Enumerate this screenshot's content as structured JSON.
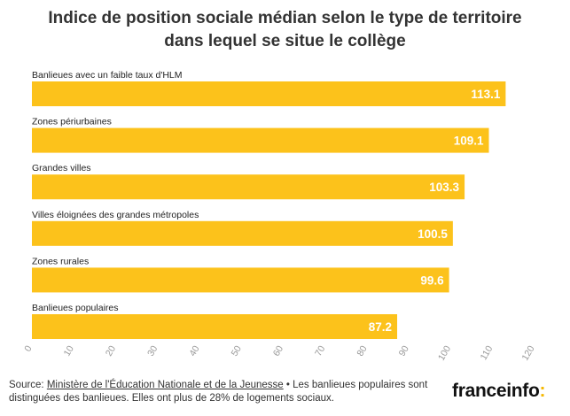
{
  "chart_data": {
    "type": "bar",
    "orientation": "horizontal",
    "title": "Indice de position sociale médian selon le type de territoire dans lequel se situe le collège",
    "title_lines": [
      "Indice de position sociale médian selon le type de territoire",
      "dans lequel se situe le collège"
    ],
    "categories": [
      "Banlieues avec un faible taux d'HLM",
      "Zones périurbaines",
      "Grandes villes",
      "Villes éloignées des grandes métropoles",
      "Zones rurales",
      "Banlieues populaires"
    ],
    "values": [
      113.1,
      109.1,
      103.3,
      100.5,
      99.6,
      87.2
    ],
    "value_labels": [
      "113.1",
      "109.1",
      "103.3",
      "100.5",
      "99.6",
      "87.2"
    ],
    "xlim": [
      0,
      120
    ],
    "xticks": [
      0,
      10,
      20,
      30,
      40,
      50,
      60,
      70,
      80,
      90,
      100,
      110,
      120
    ],
    "grid": false,
    "bar_color": "#fcc21b",
    "value_label_color": "#ffffff",
    "tick_color": "#999999"
  },
  "footer": {
    "source_prefix": "Source: ",
    "source_link": "Ministère de l'Éducation Nationale et de la Jeunesse",
    "note": " • Les banlieues populaires sont distinguées des banlieues. Elles ont plus de 28% de logements sociaux."
  },
  "brand": {
    "name": "franceinfo",
    "colon": ":",
    "accent_color": "#f5b800"
  }
}
